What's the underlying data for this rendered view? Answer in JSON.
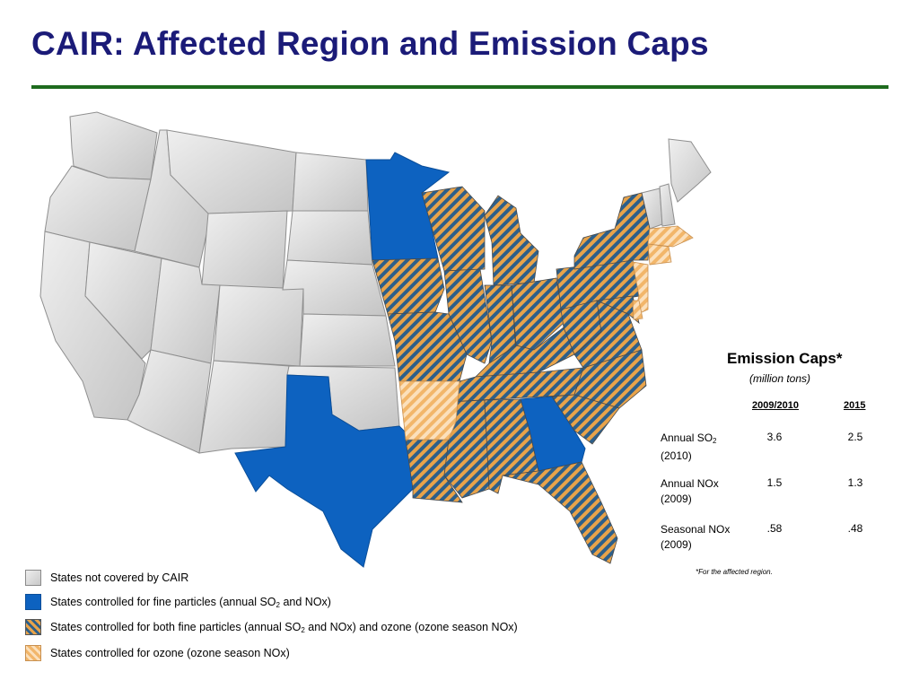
{
  "title": "CAIR: Affected Region and Emission Caps",
  "colors": {
    "not_covered": "#d6d6d6",
    "fine_particles": "#0d62c0",
    "both_stripe_a": "#e8a34a",
    "both_stripe_b": "#2d5f8a",
    "ozone_stripe": "#f2b66a",
    "title": "#1b1b78",
    "rule": "#1e6b1e"
  },
  "emission_caps": {
    "title": "Emission Caps*",
    "subtitle": "(million tons)",
    "columns": [
      "2009/2010",
      "2015"
    ],
    "rows": [
      {
        "label_main": "Annual SO",
        "label_sub": "2",
        "label_year": "(2010)",
        "values": [
          "3.6",
          "2.5"
        ]
      },
      {
        "label_main": "Annual NOx",
        "label_sub": "",
        "label_year": "(2009)",
        "values": [
          "1.5",
          "1.3"
        ]
      },
      {
        "label_main": "Seasonal NOx",
        "label_sub": "",
        "label_year": "(2009)",
        "values": [
          ".58",
          ".48"
        ]
      }
    ],
    "footnote": "*For the affected region."
  },
  "legend": [
    {
      "swatch": "not_covered",
      "pre": "States not covered by CAIR",
      "sub": "",
      "post": ""
    },
    {
      "swatch": "fine_particles",
      "pre": "States controlled for fine particles (annual SO",
      "sub": "2",
      "post": " and NOx)"
    },
    {
      "swatch": "both",
      "pre": "States controlled for both fine particles (annual SO",
      "sub": "2",
      "post": " and NOx) and ozone (ozone season NOx)"
    },
    {
      "swatch": "ozone",
      "pre": "States controlled for ozone (ozone season NOx)",
      "sub": "",
      "post": ""
    }
  ]
}
